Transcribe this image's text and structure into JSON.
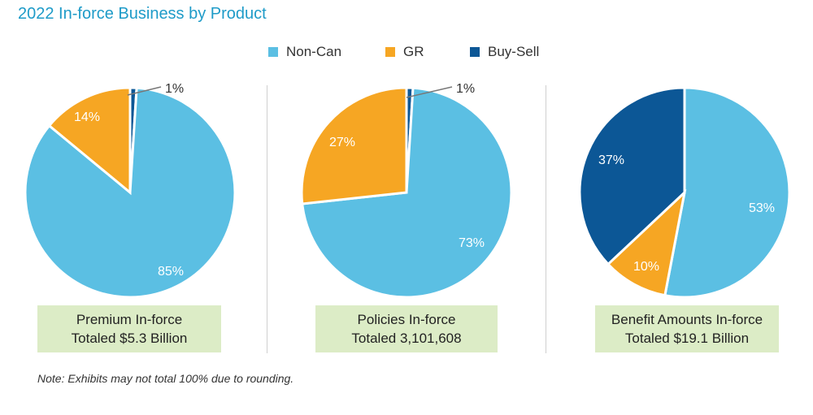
{
  "title": "2022 In-force Business by Product",
  "legend": [
    {
      "label": "Non-Can",
      "color": "#5bbfe3"
    },
    {
      "label": "GR",
      "color": "#f6a623"
    },
    {
      "label": "Buy-Sell",
      "color": "#0c5796"
    }
  ],
  "chart_data": [
    {
      "type": "pie",
      "categories": [
        "Non-Can",
        "GR",
        "Buy-Sell"
      ],
      "values": [
        85,
        14,
        1
      ],
      "labels": [
        "85%",
        "14%",
        "1%"
      ],
      "caption_line1": "Premium In-force",
      "caption_line2": "Totaled $5.3 Billion"
    },
    {
      "type": "pie",
      "categories": [
        "Non-Can",
        "GR",
        "Buy-Sell"
      ],
      "values": [
        73,
        27,
        1
      ],
      "labels": [
        "73%",
        "27%",
        "1%"
      ],
      "caption_line1": "Policies In-force",
      "caption_line2": "Totaled 3,101,608"
    },
    {
      "type": "pie",
      "categories": [
        "Non-Can",
        "GR",
        "Buy-Sell"
      ],
      "values": [
        53,
        10,
        37
      ],
      "labels": [
        "53%",
        "10%",
        "37%"
      ],
      "caption_line1": "Benefit Amounts In-force",
      "caption_line2": "Totaled $19.1 Billion"
    }
  ],
  "note": "Note: Exhibits may not total 100% due to rounding."
}
